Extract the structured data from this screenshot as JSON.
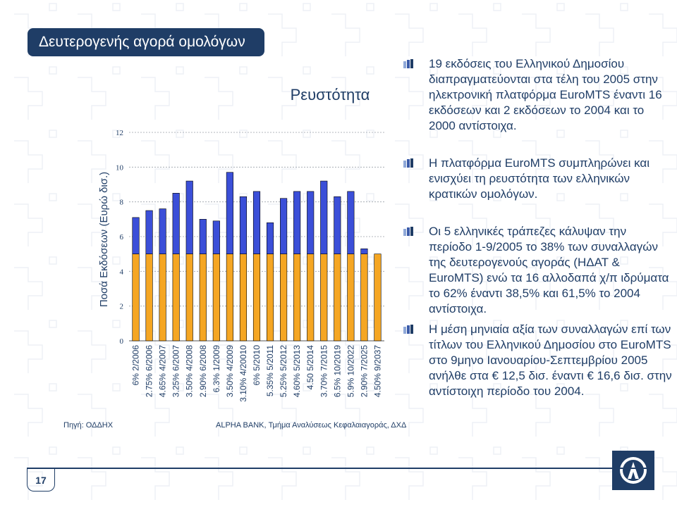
{
  "slide": {
    "title": "Δευτερογενής αγορά ομολόγων",
    "source": "Πηγή: ΟΔΔΗΧ",
    "credit": "ALPHA BANK, Τμήμα Αναλύσεως Κεφαλαιαγοράς, ΔΧΔ",
    "page_number": "17"
  },
  "bullets": [
    "19 εκδόσεις του Ελληνικού Δημοσίου διαπραγματεύονται στα τέλη του 2005 στην ηλεκτρονική πλατφόρμα EuroMTS έναντι 16 εκδόσεων και 2 εκδόσεων το 2004 και το 2000 αντίστοιχα.",
    "Η πλατφόρμα EuroMTS συμπληρώνει και ενισχύει τη ρευστότητα των ελληνικών κρατικών ομολόγων.",
    "Οι 5 ελληνικές τράπεζες κάλυψαν την περίοδο 1-9/2005 το 38% των συναλλαγών της δευτερογενούς αγοράς (ΗΔΑΤ & EuroMTS) ενώ τα 16 αλλοδαπά χ/π ιδρύματα το 62% έναντι 38,5% και 61,5% το 2004 αντίστοιχα.",
    "Η μέση μηνιαία αξία των συναλλαγών επί των τίτλων του Ελληνικού Δημοσίου στο EuroMTS στο 9μηνο Ιανουαρίου-Σεπτεμβρίου 2005 ανήλθε στα € 12,5 δισ. έναντι € 16,6 δισ. στην αντίστοιχη περίοδο του 2004."
  ],
  "colors": {
    "navy": "#1f3d66",
    "bar_blue": "#3b4fd8",
    "bar_orange": "#f5a623"
  },
  "chart_data": {
    "type": "bar",
    "stacked": true,
    "title": "Ρευστότητα",
    "ylabel": "Ποσά Εκδόσεων (Ευρώ δισ.)",
    "xlabel": "",
    "ylim": [
      0,
      12
    ],
    "yticks": [
      0,
      2,
      4,
      6,
      8,
      10,
      12
    ],
    "grid": true,
    "categories": [
      "6% 2/2006",
      "2.75% 6/2006",
      "4.65% 4/2007",
      "3.25% 6/2007",
      "3.50% 4/2008",
      "2.90% 6/2008",
      "6.3% 1/2009",
      "3.50% 4/2009",
      "3.10% 4/20010",
      "6% 5/2010",
      "5.35% 5/2011",
      "5.25% 5/2012",
      "4.60% 5/2013",
      "4.50 5/2014",
      "3.70% 7/2015",
      "6.5% 10/2019",
      "5.9% 10/2022",
      "2.90% 7/2025",
      "4.50% 9/2037"
    ],
    "series": [
      {
        "values": [
          5,
          5,
          5,
          5,
          5,
          5,
          5,
          5,
          5,
          5,
          5,
          5,
          5,
          5,
          5,
          5,
          5,
          5,
          5
        ],
        "color": "#f5a623"
      },
      {
        "values": [
          2.1,
          2.5,
          2.6,
          3.5,
          4.2,
          2.0,
          1.9,
          4.7,
          3.3,
          3.6,
          1.8,
          3.2,
          3.6,
          3.6,
          4.2,
          3.3,
          3.6,
          0.3,
          0
        ],
        "color": "#3b4fd8"
      }
    ]
  }
}
